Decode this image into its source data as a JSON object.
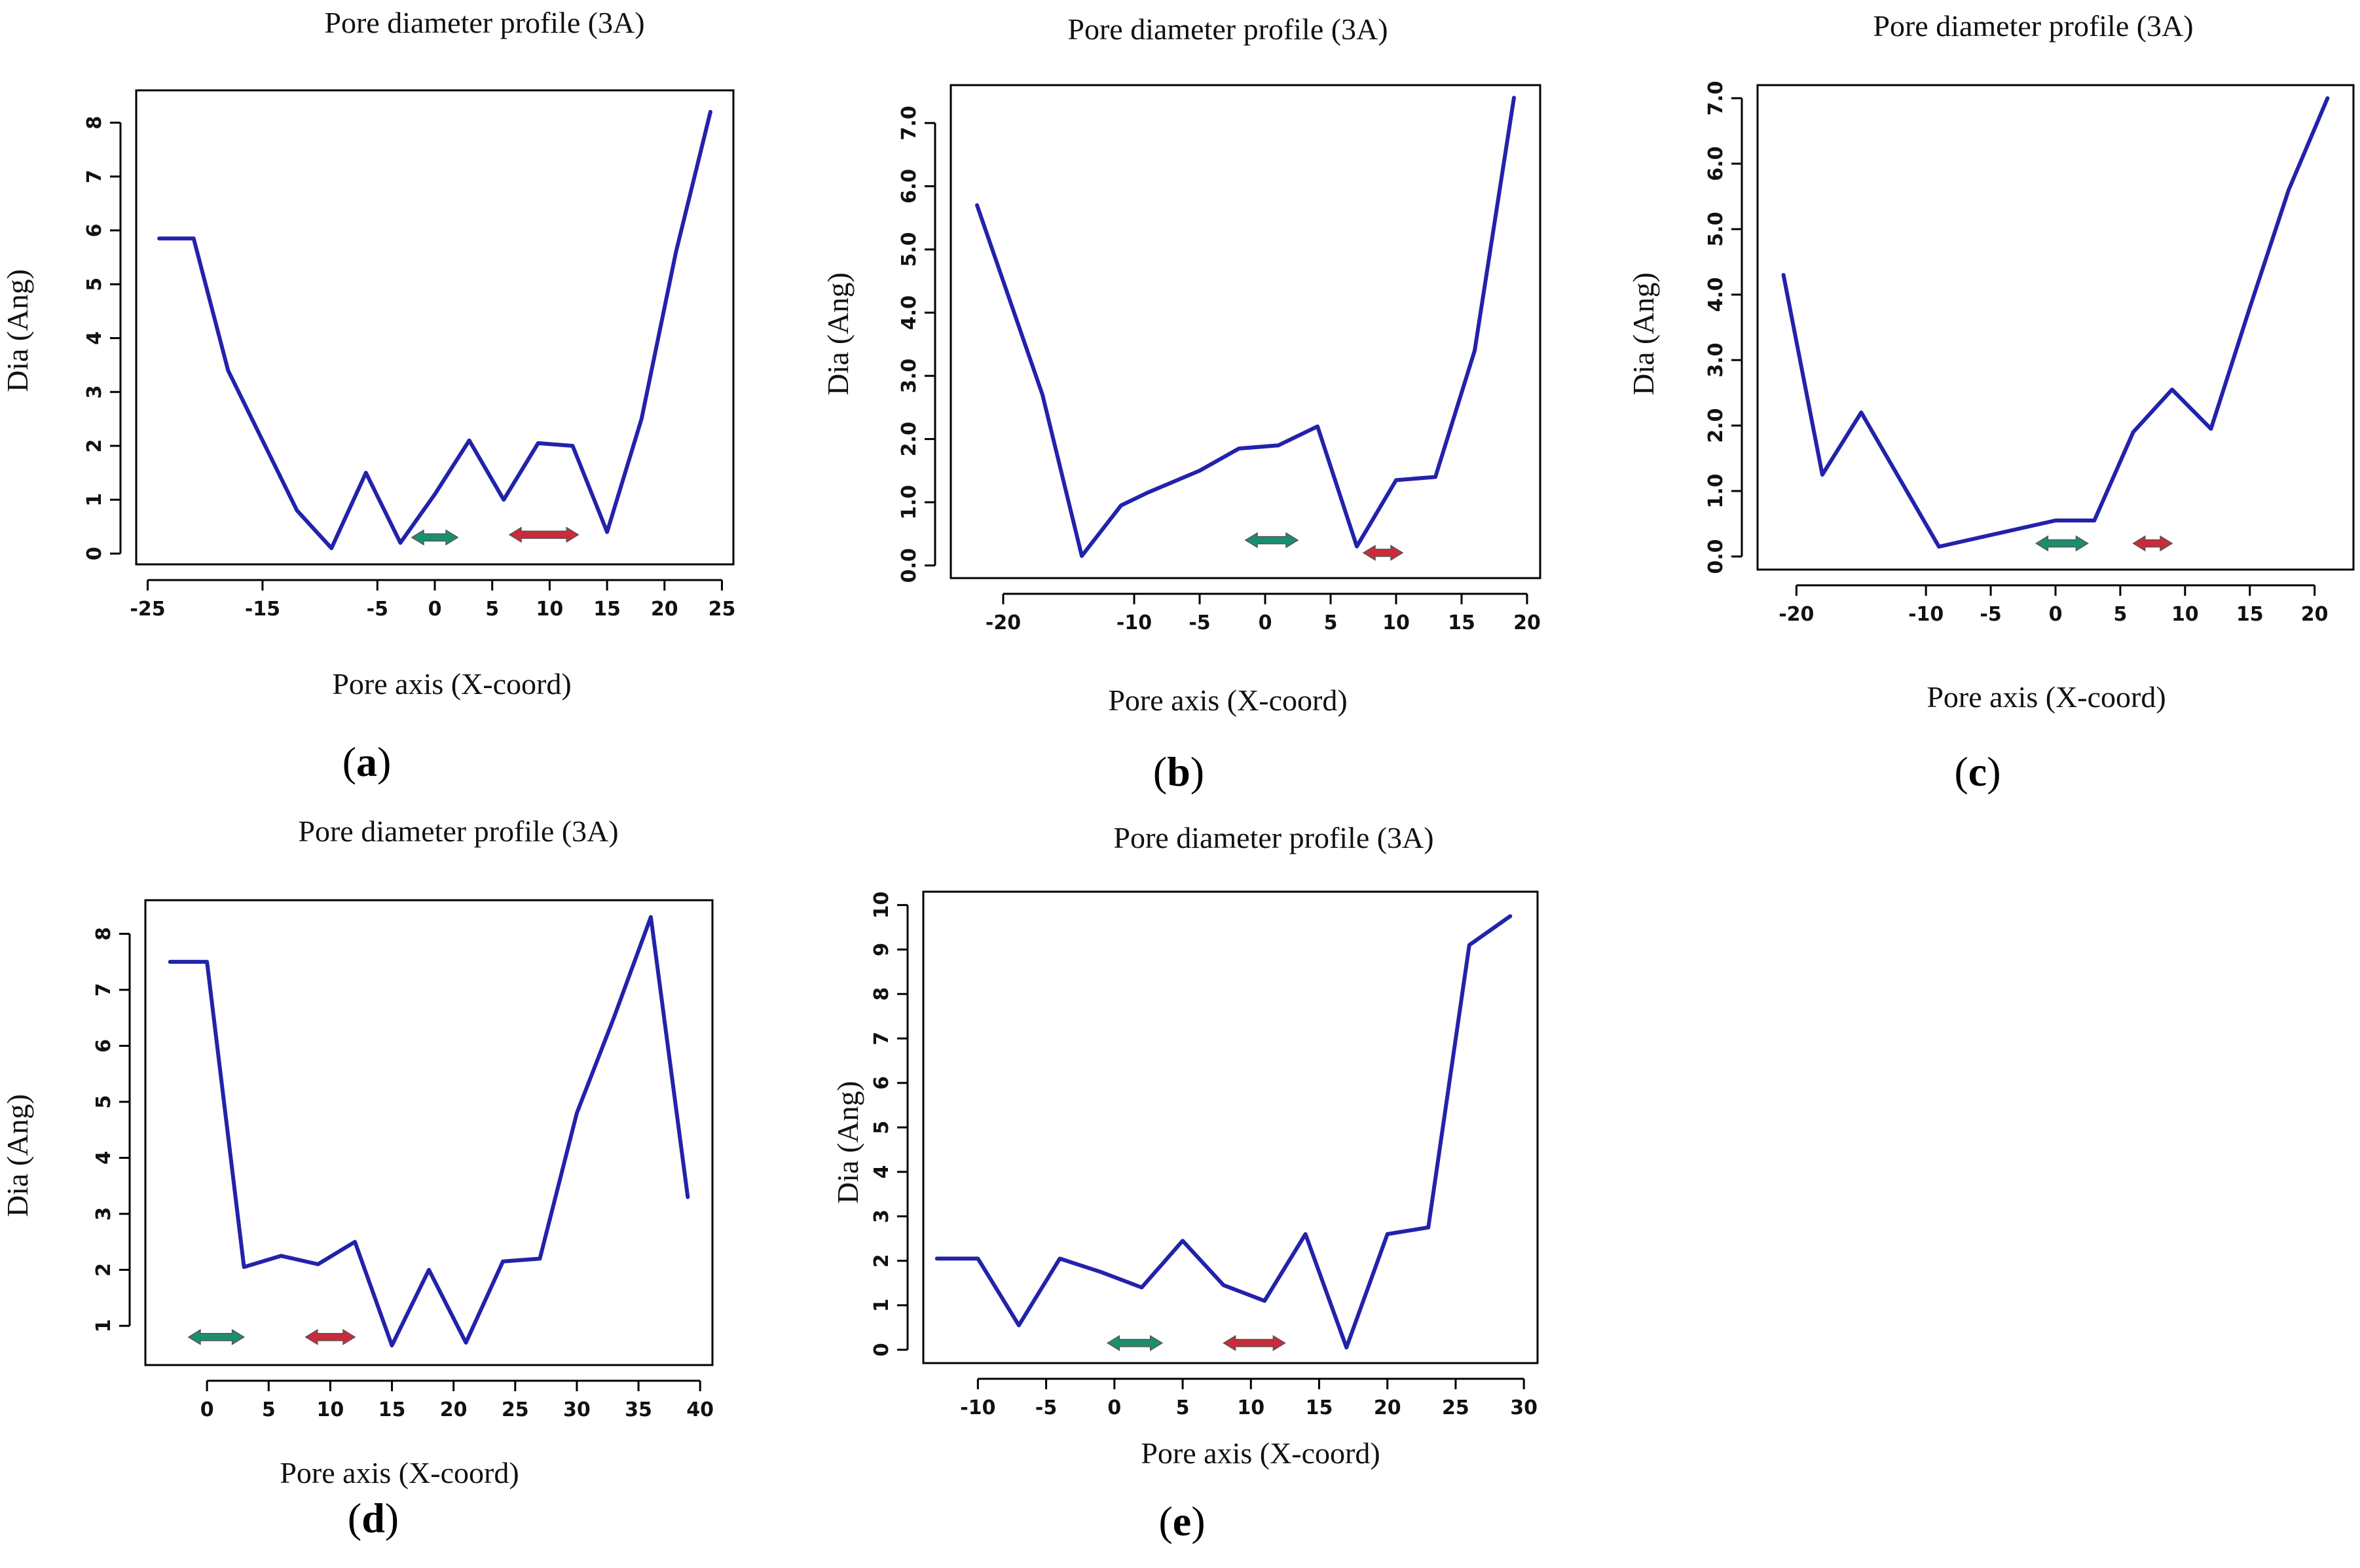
{
  "chart_data": [
    {
      "type": "line",
      "panel_label": "a",
      "title": "Pore diameter profile (3A)",
      "xlabel": "Pore axis (X-coord)",
      "ylabel": "Dia (Ang)",
      "xlim": [
        -26,
        26
      ],
      "ylim": [
        -0.2,
        8.6
      ],
      "xticks": [
        -25,
        -15,
        -5,
        0,
        5,
        10,
        15,
        20,
        25
      ],
      "xtick_labels": [
        "-25",
        "-15",
        "-5",
        "0",
        "5",
        "10",
        "15",
        "20",
        "25"
      ],
      "yticks": [
        0,
        1,
        2,
        3,
        4,
        5,
        6,
        7,
        8
      ],
      "ytick_labels": [
        "0",
        "1",
        "2",
        "3",
        "4",
        "5",
        "6",
        "7",
        "8"
      ],
      "series": [
        {
          "name": "diameter",
          "color": "#2222aa",
          "x": [
            -24,
            -21,
            -18,
            -15,
            -12,
            -9,
            -6,
            -3,
            0,
            3,
            6,
            9,
            12,
            15,
            18,
            21,
            24
          ],
          "y": [
            5.85,
            5.85,
            3.4,
            2.1,
            0.8,
            0.1,
            1.5,
            0.2,
            1.1,
            2.1,
            1.0,
            2.05,
            2.0,
            0.4,
            2.5,
            5.6,
            8.2
          ]
        }
      ],
      "arrows": [
        {
          "color": "#1a8f6f",
          "x_start": -2,
          "x_end": 2,
          "y": 0.3
        },
        {
          "color": "#cc2a3a",
          "x_start": 6.5,
          "x_end": 12.5,
          "y": 0.35
        }
      ]
    },
    {
      "type": "line",
      "panel_label": "b",
      "title": "Pore diameter profile (3A)",
      "xlabel": "Pore axis (X-coord)",
      "ylabel": "Dia (Ang)",
      "xlim": [
        -24,
        21
      ],
      "ylim": [
        -0.2,
        7.6
      ],
      "xticks": [
        -20,
        -10,
        -5,
        0,
        5,
        10,
        15,
        20
      ],
      "xtick_labels": [
        "-20",
        "-10",
        "-5",
        "0",
        "5",
        "10",
        "15",
        "20"
      ],
      "yticks": [
        0,
        1,
        2,
        3,
        4,
        5,
        6,
        7
      ],
      "ytick_labels": [
        "0.0",
        "1.0",
        "2.0",
        "3.0",
        "4.0",
        "5.0",
        "6.0",
        "7.0"
      ],
      "series": [
        {
          "name": "diameter",
          "color": "#2222aa",
          "x": [
            -22,
            -17,
            -14,
            -11,
            -9,
            -5,
            -2,
            1,
            4,
            7,
            10,
            13,
            16,
            19
          ],
          "y": [
            5.7,
            2.7,
            0.15,
            0.95,
            1.15,
            1.5,
            1.85,
            1.9,
            2.2,
            0.3,
            1.35,
            1.4,
            3.4,
            7.4
          ]
        }
      ],
      "arrows": [
        {
          "color": "#1a8f6f",
          "x_start": -1.5,
          "x_end": 2.5,
          "y": 0.4
        },
        {
          "color": "#cc2a3a",
          "x_start": 7.5,
          "x_end": 10.5,
          "y": 0.2
        }
      ]
    },
    {
      "type": "line",
      "panel_label": "c",
      "title": "Pore diameter profile (3A)",
      "xlabel": "Pore axis (X-coord)",
      "ylabel": "Dia (Ang)",
      "xlim": [
        -23,
        23
      ],
      "ylim": [
        -0.2,
        7.2
      ],
      "xticks": [
        -20,
        -10,
        -5,
        0,
        5,
        10,
        15,
        20
      ],
      "xtick_labels": [
        "-20",
        "-10",
        "-5",
        "0",
        "5",
        "10",
        "15",
        "20"
      ],
      "yticks": [
        0,
        1,
        2,
        3,
        4,
        5,
        6,
        7
      ],
      "ytick_labels": [
        "0.0",
        "1.0",
        "2.0",
        "3.0",
        "4.0",
        "5.0",
        "6.0",
        "7.0"
      ],
      "series": [
        {
          "name": "diameter",
          "color": "#2222aa",
          "x": [
            -21,
            -18,
            -15,
            -9,
            0,
            3,
            6,
            9,
            12,
            15,
            18,
            21
          ],
          "y": [
            4.3,
            1.25,
            2.2,
            0.15,
            0.55,
            0.55,
            1.9,
            2.55,
            1.95,
            3.8,
            5.6,
            7.0
          ]
        }
      ],
      "arrows": [
        {
          "color": "#1a8f6f",
          "x_start": -1.5,
          "x_end": 2.5,
          "y": 0.2
        },
        {
          "color": "#cc2a3a",
          "x_start": 6,
          "x_end": 9,
          "y": 0.2
        }
      ]
    },
    {
      "type": "line",
      "panel_label": "d",
      "title": "Pore diameter profile (3A)",
      "xlabel": "Pore axis (X-coord)",
      "ylabel": "Dia (Ang)",
      "xlim": [
        -5,
        41
      ],
      "ylim": [
        0.3,
        8.6
      ],
      "xticks": [
        0,
        5,
        10,
        15,
        20,
        25,
        30,
        35,
        40
      ],
      "xtick_labels": [
        "0",
        "5",
        "10",
        "15",
        "20",
        "25",
        "30",
        "35",
        "40"
      ],
      "yticks": [
        1,
        2,
        3,
        4,
        5,
        6,
        7,
        8
      ],
      "ytick_labels": [
        "1",
        "2",
        "3",
        "4",
        "5",
        "6",
        "7",
        "8"
      ],
      "series": [
        {
          "name": "diameter",
          "color": "#2222aa",
          "x": [
            -3,
            0,
            3,
            6,
            9,
            12,
            15,
            18,
            21,
            24,
            27,
            30,
            33,
            36,
            39
          ],
          "y": [
            7.5,
            7.5,
            2.05,
            2.25,
            2.1,
            2.5,
            0.65,
            2.0,
            0.7,
            2.15,
            2.2,
            4.8,
            6.5,
            8.3,
            3.3
          ]
        }
      ],
      "arrows": [
        {
          "color": "#1a8f6f",
          "x_start": -1.5,
          "x_end": 3,
          "y": 0.8
        },
        {
          "color": "#cc2a3a",
          "x_start": 8,
          "x_end": 12,
          "y": 0.8
        }
      ]
    },
    {
      "type": "line",
      "panel_label": "e",
      "title": "Pore diameter profile (3A)",
      "xlabel": "Pore axis (X-coord)",
      "ylabel": "Dia (Ang)",
      "xlim": [
        -14,
        31
      ],
      "ylim": [
        -0.3,
        10.3
      ],
      "xticks": [
        -10,
        -5,
        0,
        5,
        10,
        15,
        20,
        25,
        30
      ],
      "xtick_labels": [
        "-10",
        "-5",
        "0",
        "5",
        "10",
        "15",
        "20",
        "25",
        "30"
      ],
      "yticks": [
        0,
        1,
        2,
        3,
        4,
        5,
        6,
        7,
        8,
        9,
        10
      ],
      "ytick_labels": [
        "0",
        "1",
        "2",
        "3",
        "4",
        "5",
        "6",
        "7",
        "8",
        "9",
        "10"
      ],
      "series": [
        {
          "name": "diameter",
          "color": "#2222aa",
          "x": [
            -13,
            -10,
            -7,
            -4,
            -1,
            2,
            5,
            8,
            11,
            14,
            17,
            20,
            23,
            26,
            29
          ],
          "y": [
            2.05,
            2.05,
            0.55,
            2.05,
            1.75,
            1.4,
            2.45,
            1.45,
            1.1,
            2.6,
            0.05,
            2.6,
            2.75,
            9.1,
            9.75
          ]
        }
      ],
      "arrows": [
        {
          "color": "#1a8f6f",
          "x_start": -0.5,
          "x_end": 3.5,
          "y": 0.15
        },
        {
          "color": "#cc2a3a",
          "x_start": 8,
          "x_end": 12.5,
          "y": 0.15
        }
      ]
    }
  ]
}
